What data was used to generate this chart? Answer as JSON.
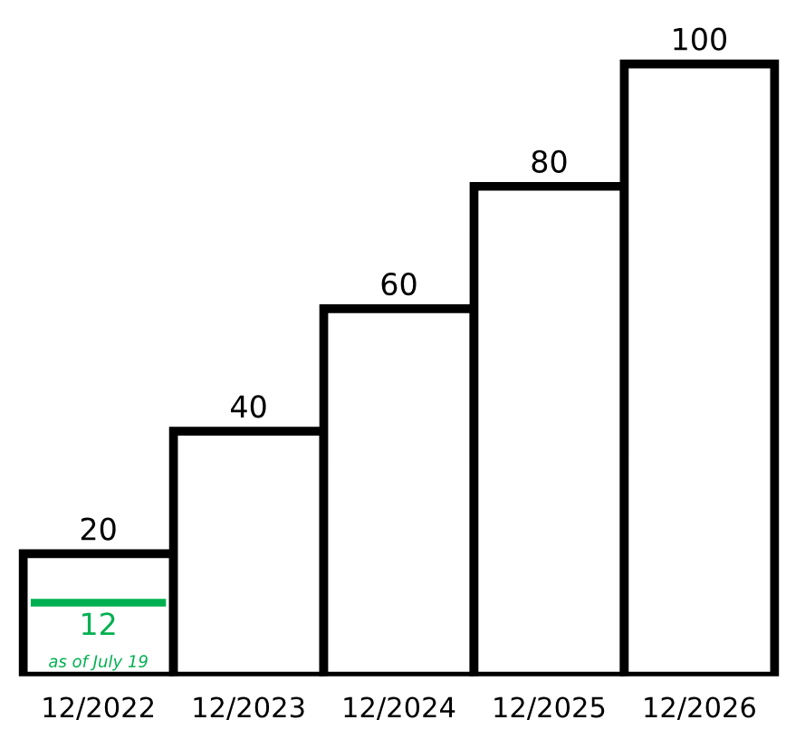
{
  "chart_data": {
    "type": "bar",
    "categories": [
      "12/2022",
      "12/2023",
      "12/2024",
      "12/2025",
      "12/2026"
    ],
    "values": [
      20,
      40,
      60,
      80,
      100
    ],
    "color": "#ffffff",
    "data_labels": true,
    "tick_labels": "x",
    "grid": false,
    "ref_lines": [
      {
        "axis": "y",
        "value": 12,
        "label": "12",
        "color": "#00b050"
      }
    ],
    "annotations": [
      "as of July 19"
    ]
  }
}
